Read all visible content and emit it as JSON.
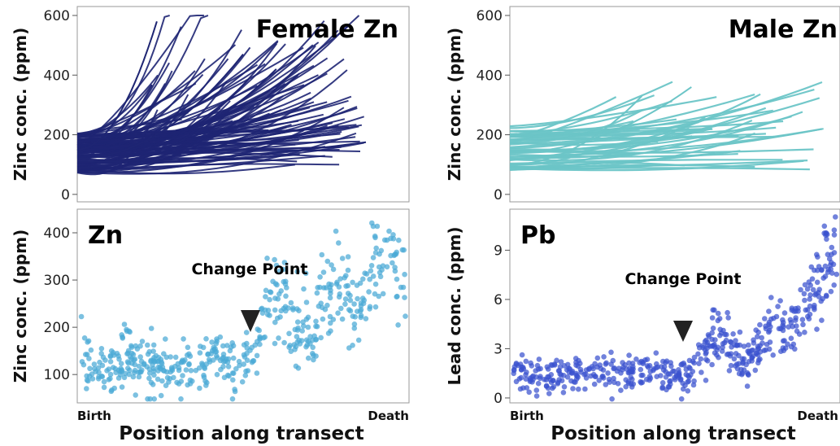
{
  "colors": {
    "female": "#1e2573",
    "male": "#6cc5c7",
    "zn_points": "#4aa9d6",
    "pb_points": "#3a52cf",
    "arrow": "#222222"
  },
  "chart_data": [
    {
      "type": "line",
      "title": "Female Zn",
      "ylabel": "Zinc conc. (ppm)",
      "ylim": [
        -25,
        630
      ],
      "yticks": [
        0,
        200,
        400,
        600
      ],
      "xlim": [
        0,
        1
      ],
      "grid": false,
      "series_count": 120,
      "series_x_range": [
        0,
        0.87
      ],
      "series_shape": "rising curves; start ~70-200 ppm, end ~100-580 ppm",
      "series_samples": [
        {
          "x": [
            0,
            0.24
          ],
          "y": [
            150,
            580
          ]
        },
        {
          "x": [
            0,
            0.5
          ],
          "y": [
            120,
            470
          ]
        },
        {
          "x": [
            0,
            0.87
          ],
          "y": [
            110,
            175
          ]
        },
        {
          "x": [
            0,
            0.6
          ],
          "y": [
            90,
            420
          ]
        }
      ]
    },
    {
      "type": "line",
      "title": "Male Zn",
      "ylabel": "Zinc conc. (ppm)",
      "ylim": [
        -25,
        630
      ],
      "yticks": [
        0,
        200,
        400,
        600
      ],
      "xlim": [
        0,
        1
      ],
      "grid": false,
      "series_count": 50,
      "series_x_range": [
        0,
        0.95
      ],
      "series_shape": "rising curves; start ~80-240 ppm, end ~120-360 ppm",
      "series_samples": [
        {
          "x": [
            0,
            0.55
          ],
          "y": [
            140,
            360
          ]
        },
        {
          "x": [
            0,
            0.95
          ],
          "y": [
            120,
            220
          ]
        },
        {
          "x": [
            0,
            0.4
          ],
          "y": [
            100,
            330
          ]
        }
      ]
    },
    {
      "type": "scatter",
      "title": "Zn",
      "ylabel": "Zinc conc. (ppm)",
      "xlabel": "Position along transect",
      "x_tick_labels": [
        "Birth",
        "Death"
      ],
      "ylim": [
        40,
        450
      ],
      "yticks": [
        100,
        200,
        300,
        400
      ],
      "xlim": [
        0,
        1
      ],
      "point_count": 520,
      "annotation": {
        "text": "Change Point",
        "x": 0.51
      },
      "trend_knots": [
        {
          "x": 0.02,
          "y": 125
        },
        {
          "x": 0.1,
          "y": 110
        },
        {
          "x": 0.15,
          "y": 135
        },
        {
          "x": 0.2,
          "y": 125
        },
        {
          "x": 0.3,
          "y": 120
        },
        {
          "x": 0.38,
          "y": 125
        },
        {
          "x": 0.45,
          "y": 140
        },
        {
          "x": 0.48,
          "y": 110
        },
        {
          "x": 0.5,
          "y": 135
        },
        {
          "x": 0.54,
          "y": 150
        },
        {
          "x": 0.58,
          "y": 250
        },
        {
          "x": 0.62,
          "y": 270
        },
        {
          "x": 0.66,
          "y": 200
        },
        {
          "x": 0.7,
          "y": 160
        },
        {
          "x": 0.74,
          "y": 270
        },
        {
          "x": 0.78,
          "y": 280
        },
        {
          "x": 0.82,
          "y": 240
        },
        {
          "x": 0.86,
          "y": 220
        },
        {
          "x": 0.9,
          "y": 330
        },
        {
          "x": 0.94,
          "y": 320
        },
        {
          "x": 0.98,
          "y": 340
        }
      ]
    },
    {
      "type": "scatter",
      "title": "Pb",
      "ylabel": "Lead conc. (ppm)",
      "xlabel": "Position along transect",
      "x_tick_labels": [
        "Birth",
        "Death"
      ],
      "ylim": [
        -0.3,
        11.5
      ],
      "yticks": [
        0,
        3,
        6,
        9
      ],
      "xlim": [
        0,
        1
      ],
      "point_count": 520,
      "annotation": {
        "text": "Change Point",
        "x": 0.53
      },
      "trend_knots": [
        {
          "x": 0.02,
          "y": 1.6
        },
        {
          "x": 0.1,
          "y": 1.1
        },
        {
          "x": 0.2,
          "y": 1.5
        },
        {
          "x": 0.3,
          "y": 1.6
        },
        {
          "x": 0.4,
          "y": 1.7
        },
        {
          "x": 0.48,
          "y": 1.6
        },
        {
          "x": 0.52,
          "y": 1.2
        },
        {
          "x": 0.56,
          "y": 2.0
        },
        {
          "x": 0.6,
          "y": 3.2
        },
        {
          "x": 0.64,
          "y": 3.8
        },
        {
          "x": 0.68,
          "y": 2.8
        },
        {
          "x": 0.72,
          "y": 2.0
        },
        {
          "x": 0.76,
          "y": 3.2
        },
        {
          "x": 0.8,
          "y": 4.8
        },
        {
          "x": 0.84,
          "y": 3.8
        },
        {
          "x": 0.88,
          "y": 5.0
        },
        {
          "x": 0.92,
          "y": 6.2
        },
        {
          "x": 0.96,
          "y": 8.0
        },
        {
          "x": 0.99,
          "y": 9.0
        }
      ]
    }
  ]
}
